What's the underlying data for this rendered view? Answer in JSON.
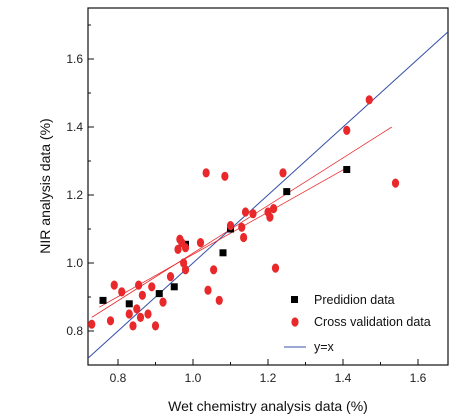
{
  "chart_data": {
    "type": "scatter",
    "title": "",
    "xlabel": "Wet chemistry analysis data (%)",
    "ylabel": "NIR analysis data (%)",
    "xlim": [
      0.72,
      1.68
    ],
    "ylim": [
      0.7,
      1.75
    ],
    "xticks": [
      "0.8",
      "1.0",
      "1.2",
      "1.4",
      "1.6"
    ],
    "yticks": [
      "0.8",
      "1.0",
      "1.2",
      "1.4",
      "1.6"
    ],
    "grid": false,
    "legend_position": "bottom-right",
    "series": [
      {
        "name": "Prediction data",
        "marker": "square",
        "color": "#000000",
        "points": [
          [
            0.76,
            0.89
          ],
          [
            0.83,
            0.88
          ],
          [
            0.91,
            0.91
          ],
          [
            0.95,
            0.93
          ],
          [
            0.98,
            1.055
          ],
          [
            1.08,
            1.03
          ],
          [
            1.1,
            1.1
          ],
          [
            1.25,
            1.21
          ],
          [
            1.41,
            1.275
          ]
        ]
      },
      {
        "name": "Cross validation data",
        "marker": "circle",
        "color": "#e8282a",
        "points": [
          [
            0.73,
            0.82
          ],
          [
            0.78,
            0.83
          ],
          [
            0.79,
            0.935
          ],
          [
            0.81,
            0.915
          ],
          [
            0.83,
            0.85
          ],
          [
            0.84,
            0.815
          ],
          [
            0.85,
            0.865
          ],
          [
            0.855,
            0.935
          ],
          [
            0.865,
            0.905
          ],
          [
            0.86,
            0.84
          ],
          [
            0.88,
            0.85
          ],
          [
            0.89,
            0.93
          ],
          [
            0.9,
            0.815
          ],
          [
            0.92,
            0.885
          ],
          [
            0.94,
            0.96
          ],
          [
            0.96,
            1.04
          ],
          [
            0.965,
            1.07
          ],
          [
            0.97,
            1.06
          ],
          [
            0.975,
            1.0
          ],
          [
            0.98,
            0.98
          ],
          [
            0.98,
            1.045
          ],
          [
            1.02,
            1.06
          ],
          [
            1.035,
            1.265
          ],
          [
            1.04,
            0.92
          ],
          [
            1.055,
            0.98
          ],
          [
            1.07,
            0.89
          ],
          [
            1.085,
            1.255
          ],
          [
            1.1,
            1.11
          ],
          [
            1.13,
            1.105
          ],
          [
            1.135,
            1.075
          ],
          [
            1.14,
            1.15
          ],
          [
            1.16,
            1.145
          ],
          [
            1.2,
            1.15
          ],
          [
            1.205,
            1.135
          ],
          [
            1.215,
            1.16
          ],
          [
            1.22,
            0.985
          ],
          [
            1.24,
            1.265
          ],
          [
            1.41,
            1.39
          ],
          [
            1.47,
            1.48
          ],
          [
            1.54,
            1.235
          ]
        ]
      },
      {
        "name": "y=x",
        "marker": "line",
        "color": "#3450a8",
        "points": [
          [
            0.7,
            0.7
          ],
          [
            1.7,
            1.7
          ]
        ]
      }
    ],
    "trend_lines": [
      {
        "color": "#e8282a",
        "points": [
          [
            0.73,
            0.84
          ],
          [
            1.53,
            1.4
          ]
        ]
      },
      {
        "color": "#e8282a",
        "points": [
          [
            0.75,
            0.87
          ],
          [
            1.41,
            1.28
          ]
        ]
      }
    ]
  },
  "legend": {
    "items": [
      "Predidion data",
      "Cross validation data",
      "y=x"
    ]
  }
}
